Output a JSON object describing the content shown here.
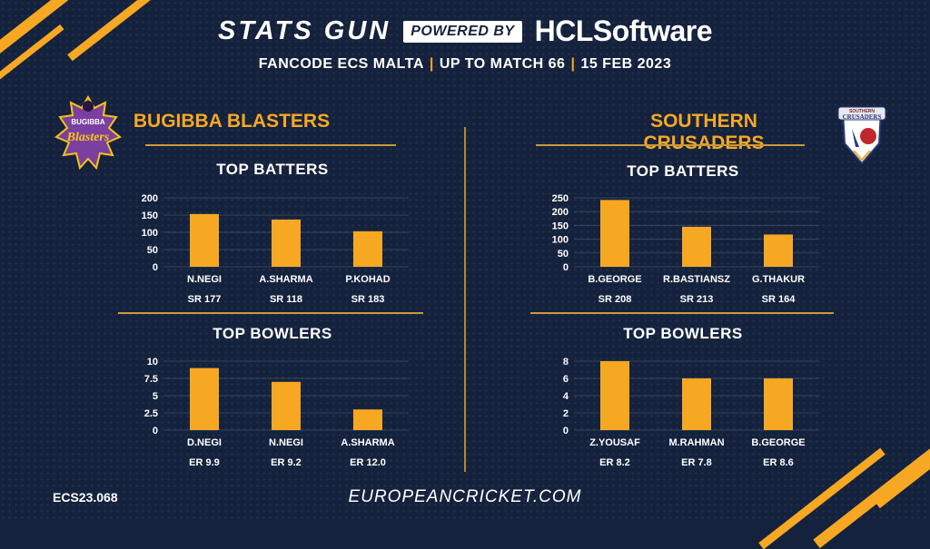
{
  "header": {
    "title": "STATS GUN",
    "powered_by": "POWERED BY",
    "brand_hcl": "HCL",
    "brand_software": "Software",
    "league": "FANCODE ECS MALTA",
    "match": "UP TO MATCH  66",
    "date": "15 FEB 2023",
    "separator": "|"
  },
  "colors": {
    "background": "#15223d",
    "accent": "#f7a823",
    "text": "#ffffff"
  },
  "teams": [
    {
      "name": "BUGIBBA BLASTERS",
      "logo": {
        "icon": "bugibba-blasters-logo",
        "text_top": "BUGIBBA",
        "text_main": "Blasters"
      }
    },
    {
      "name": "SOUTHERN CRUSADERS",
      "logo": {
        "icon": "southern-crusaders-logo",
        "text_top": "SOUTHERN",
        "text_main": "CRUSADERS"
      }
    }
  ],
  "chart_data": [
    {
      "id": "bb-bat",
      "team": "BUGIBBA BLASTERS",
      "type": "bar",
      "title": "TOP BATTERS",
      "categories": [
        "N.NEGI",
        "A.SHARMA",
        "P.KOHAD"
      ],
      "values": [
        153,
        137,
        103
      ],
      "secondary_labels": [
        "SR 177",
        "SR 118",
        "SR 183"
      ],
      "yticks": [
        "0",
        "50",
        "100",
        "150",
        "200"
      ],
      "ylim": [
        0,
        200
      ],
      "grid": true
    },
    {
      "id": "bb-bowl",
      "team": "BUGIBBA BLASTERS",
      "type": "bar",
      "title": "TOP BOWLERS",
      "categories": [
        "D.NEGI",
        "N.NEGI",
        "A.SHARMA"
      ],
      "values": [
        9,
        7,
        3
      ],
      "secondary_labels": [
        "ER 9.9",
        "ER 9.2",
        "ER 12.0"
      ],
      "yticks": [
        "0",
        "2.5",
        "5",
        "7.5",
        "10"
      ],
      "ylim": [
        0,
        10
      ],
      "grid": true
    },
    {
      "id": "sc-bat",
      "team": "SOUTHERN CRUSADERS",
      "type": "bar",
      "title": "TOP BATTERS",
      "categories": [
        "B.GEORGE",
        "R.BASTIANSZ",
        "G.THAKUR"
      ],
      "values": [
        242,
        145,
        117
      ],
      "secondary_labels": [
        "SR 208",
        "SR 213",
        "SR 164"
      ],
      "yticks": [
        "0",
        "50",
        "100",
        "150",
        "200",
        "250"
      ],
      "ylim": [
        0,
        250
      ],
      "grid": true
    },
    {
      "id": "sc-bowl",
      "team": "SOUTHERN CRUSADERS",
      "type": "bar",
      "title": "TOP BOWLERS",
      "categories": [
        "Z.YOUSAF",
        "M.RAHMAN",
        "B.GEORGE"
      ],
      "values": [
        8,
        6,
        6
      ],
      "secondary_labels": [
        "ER 8.2",
        "ER 7.8",
        "ER 8.6"
      ],
      "yticks": [
        "0",
        "2",
        "4",
        "6",
        "8"
      ],
      "ylim": [
        0,
        8
      ],
      "grid": true
    }
  ],
  "footer": {
    "code": "ECS23.068",
    "url": "EUROPEANCRICKET.COM"
  }
}
